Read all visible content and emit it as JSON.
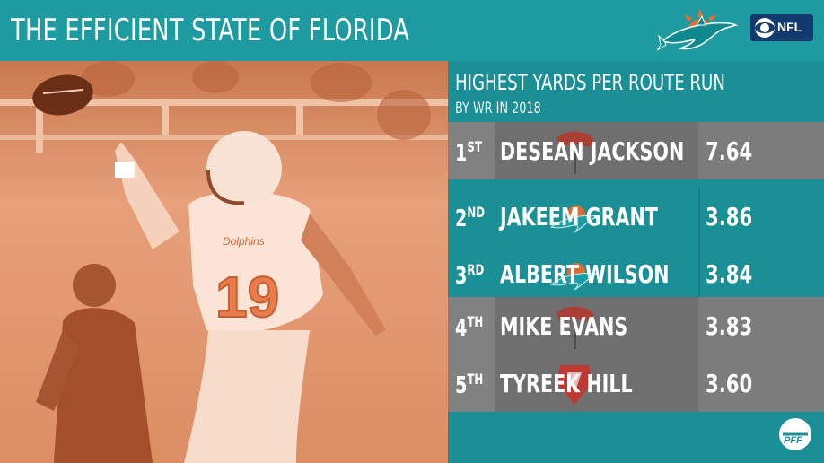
{
  "header": {
    "title": "THE EFFICIENT STATE OF FLORIDA",
    "badge_text": "NFL",
    "team_logo_icon": "miami-dolphins-logo",
    "network_icon": "cbs-eye-icon"
  },
  "panel": {
    "title": "HIGHEST YARDS PER ROUTE RUN",
    "subtitle": "BY WR IN 2018"
  },
  "rows": [
    {
      "rank": "1",
      "suffix": "ST",
      "name": "DESEAN JACKSON",
      "value": "7.64",
      "team_icon": "buccaneers-logo",
      "style": "grey"
    },
    {
      "rank": "2",
      "suffix": "ND",
      "name": "JAKEEM GRANT",
      "value": "3.86",
      "team_icon": "dolphins-logo",
      "style": "teal"
    },
    {
      "rank": "3",
      "suffix": "RD",
      "name": "ALBERT WILSON",
      "value": "3.84",
      "team_icon": "dolphins-logo",
      "style": "teal"
    },
    {
      "rank": "4",
      "suffix": "TH",
      "name": "MIKE EVANS",
      "value": "3.83",
      "team_icon": "buccaneers-logo",
      "style": "grey"
    },
    {
      "rank": "5",
      "suffix": "TH",
      "name": "TYREEK HILL",
      "value": "3.60",
      "team_icon": "chiefs-logo",
      "style": "grey"
    }
  ],
  "colors": {
    "teal": "#1b8f96",
    "header_teal": "#1e9aa1",
    "grey": "#6f6f6f",
    "photo_tint": "#d98a62",
    "orange": "#f26a24"
  },
  "photo": {
    "jersey_number": "19",
    "jersey_text": "Dolphins"
  },
  "footer": {
    "logo_icon": "pff-logo"
  }
}
